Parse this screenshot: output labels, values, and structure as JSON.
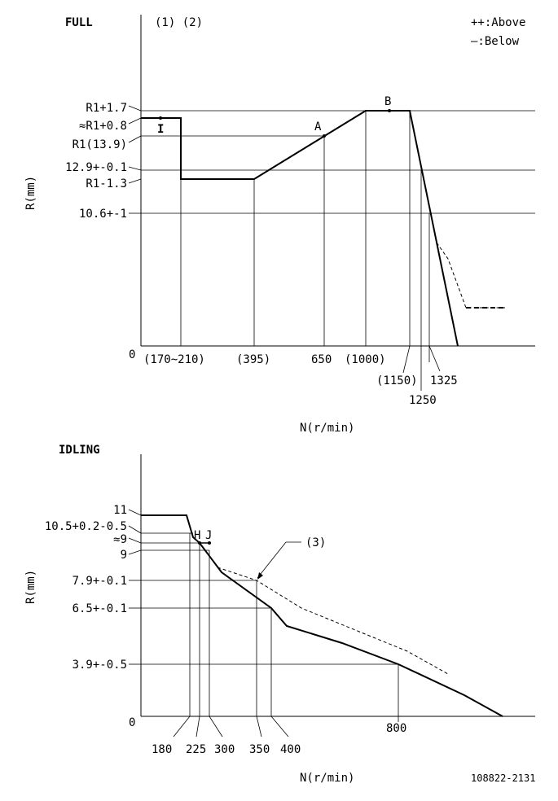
{
  "full": {
    "title": "FULL",
    "notes": "(1) (2)",
    "legend": {
      "above": "++:Above",
      "below": "—:Below"
    },
    "y_axis_label": "R(mm)",
    "x_axis_label": "N(r/min)",
    "origin": "0",
    "y_labels": [
      "R1+1.7",
      "≈R1+0.8",
      "R1(13.9)",
      "12.9+-0.1",
      "R1-1.3",
      "10.6+-1"
    ],
    "x_labels": [
      "(170~210)",
      "(395)",
      "650",
      "(1000)",
      "(1150)",
      "1250",
      "1325"
    ],
    "points": {
      "A": "A",
      "B": "B",
      "I": "I"
    }
  },
  "idling": {
    "title": "IDLING",
    "y_axis_label": "R(mm)",
    "x_axis_label": "N(r/min)",
    "origin": "0",
    "y_labels": [
      "11",
      "10.5+0.2-0.5",
      "≈9",
      "9",
      "7.9+-0.1",
      "6.5+-0.1",
      "3.9+-0.5"
    ],
    "x_labels": [
      "180",
      "225",
      "300",
      "350",
      "400",
      "800"
    ],
    "points": {
      "H": "H",
      "J": "J"
    },
    "note_ref": "(3)"
  },
  "doc_code": "108822-2131"
}
